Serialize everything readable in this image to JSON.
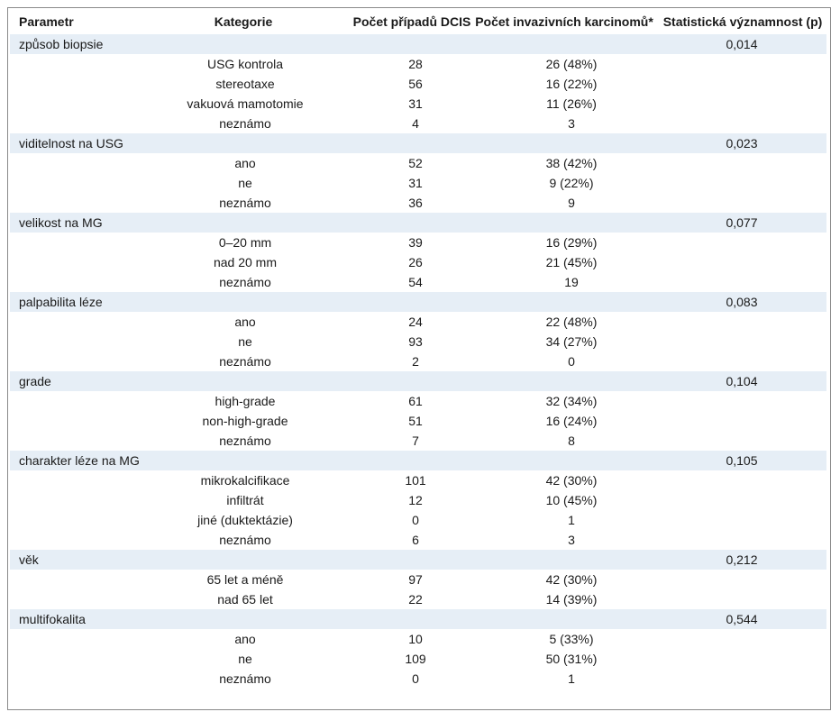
{
  "headers": {
    "param": "Parametr",
    "category": "Kategorie",
    "dcis": "Počet případů DCIS",
    "invasive": "Počet invazivních karcinomů*",
    "p": "Statistická významnost (p)"
  },
  "groups": [
    {
      "name": "způsob biopsie",
      "p": "0,014",
      "rows": [
        {
          "cat": "USG kontrola",
          "dcis": "28",
          "inv": "26 (48%)"
        },
        {
          "cat": "stereotaxe",
          "dcis": "56",
          "inv": "16 (22%)"
        },
        {
          "cat": "vakuová mamotomie",
          "dcis": "31",
          "inv": "11 (26%)"
        },
        {
          "cat": "neznámo",
          "dcis": "4",
          "inv": "3"
        }
      ]
    },
    {
      "name": "viditelnost na USG",
      "p": "0,023",
      "rows": [
        {
          "cat": "ano",
          "dcis": "52",
          "inv": "38 (42%)"
        },
        {
          "cat": "ne",
          "dcis": "31",
          "inv": "9 (22%)"
        },
        {
          "cat": "neznámo",
          "dcis": "36",
          "inv": "9"
        }
      ]
    },
    {
      "name": "velikost na MG",
      "p": "0,077",
      "rows": [
        {
          "cat": "0–20 mm",
          "dcis": "39",
          "inv": "16 (29%)"
        },
        {
          "cat": "nad 20 mm",
          "dcis": "26",
          "inv": "21 (45%)"
        },
        {
          "cat": "neznámo",
          "dcis": "54",
          "inv": "19"
        }
      ]
    },
    {
      "name": "palpabilita léze",
      "p": "0,083",
      "rows": [
        {
          "cat": "ano",
          "dcis": "24",
          "inv": "22 (48%)"
        },
        {
          "cat": "ne",
          "dcis": "93",
          "inv": "34 (27%)"
        },
        {
          "cat": "neznámo",
          "dcis": "2",
          "inv": "0"
        }
      ]
    },
    {
      "name": "grade",
      "p": "0,104",
      "rows": [
        {
          "cat": "high-grade",
          "dcis": "61",
          "inv": "32 (34%)"
        },
        {
          "cat": "non-high-grade",
          "dcis": "51",
          "inv": "16 (24%)"
        },
        {
          "cat": "neznámo",
          "dcis": "7",
          "inv": "8"
        }
      ]
    },
    {
      "name": "charakter léze na MG",
      "p": "0,105",
      "rows": [
        {
          "cat": "mikrokalcifikace",
          "dcis": "101",
          "inv": "42 (30%)"
        },
        {
          "cat": "infiltrát",
          "dcis": "12",
          "inv": "10 (45%)"
        },
        {
          "cat": "jiné (duktektázie)",
          "dcis": "0",
          "inv": "1"
        },
        {
          "cat": "neznámo",
          "dcis": "6",
          "inv": "3"
        }
      ]
    },
    {
      "name": "věk",
      "p": "0,212",
      "rows": [
        {
          "cat": "65 let a méně",
          "dcis": "97",
          "inv": "42 (30%)"
        },
        {
          "cat": "nad 65 let",
          "dcis": "22",
          "inv": "14 (39%)"
        }
      ]
    },
    {
      "name": "multifokalita",
      "p": "0,544",
      "rows": [
        {
          "cat": "ano",
          "dcis": "10",
          "inv": "5 (33%)"
        },
        {
          "cat": "ne",
          "dcis": "109",
          "inv": "50 (31%)"
        },
        {
          "cat": "neznámo",
          "dcis": "0",
          "inv": "1"
        }
      ]
    }
  ],
  "colors": {
    "group_band": "#e6eef6",
    "border": "#8a8a8a"
  }
}
